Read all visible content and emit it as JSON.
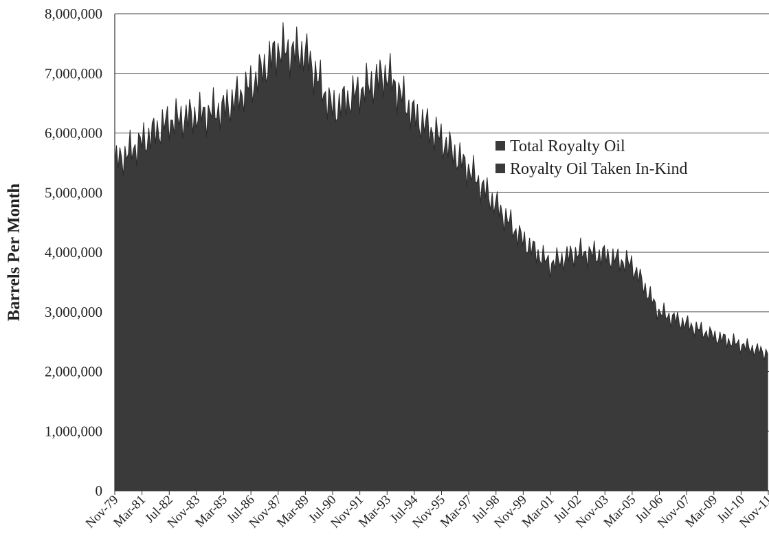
{
  "chart_data": {
    "type": "area",
    "ylabel": "Barrels Per Month",
    "xlabel": "",
    "ylim": [
      0,
      8000000
    ],
    "y_ticks": [
      0,
      1000000,
      2000000,
      3000000,
      4000000,
      5000000,
      6000000,
      7000000,
      8000000
    ],
    "y_tick_labels": [
      "0",
      "1,000,000",
      "2,000,000",
      "3,000,000",
      "4,000,000",
      "5,000,000",
      "6,000,000",
      "7,000,000",
      "8,000,000"
    ],
    "x_tick_labels": [
      "Nov-79",
      "Mar-81",
      "Jul-82",
      "Nov-83",
      "Mar-85",
      "Jul-86",
      "Nov-87",
      "Mar-89",
      "Jul-90",
      "Nov-91",
      "Mar-93",
      "Jul-94",
      "Nov-95",
      "Mar-97",
      "Jul-98",
      "Nov-99",
      "Mar-01",
      "Jul-02",
      "Nov-03",
      "Mar-05",
      "Jul-06",
      "Nov-07",
      "Mar-09",
      "Jul-10",
      "Nov-11"
    ],
    "grid": true,
    "legend_position": "right-center",
    "series": [
      {
        "name": "Total Royalty Oil",
        "color": "#3a3a3a",
        "values": [
          5500000,
          5850000,
          6200000,
          6300000,
          6400000,
          6800000,
          7400000,
          7350000,
          6400000,
          6700000,
          7000000,
          6300000,
          5900000,
          5400000,
          4800000,
          4200000,
          3800000,
          4000000,
          3950000,
          3800000,
          3000000,
          2800000,
          2600000,
          2450000,
          2300000
        ]
      },
      {
        "name": "Royalty Oil Taken In-Kind",
        "color": "#3a3a3a",
        "values": []
      }
    ]
  }
}
